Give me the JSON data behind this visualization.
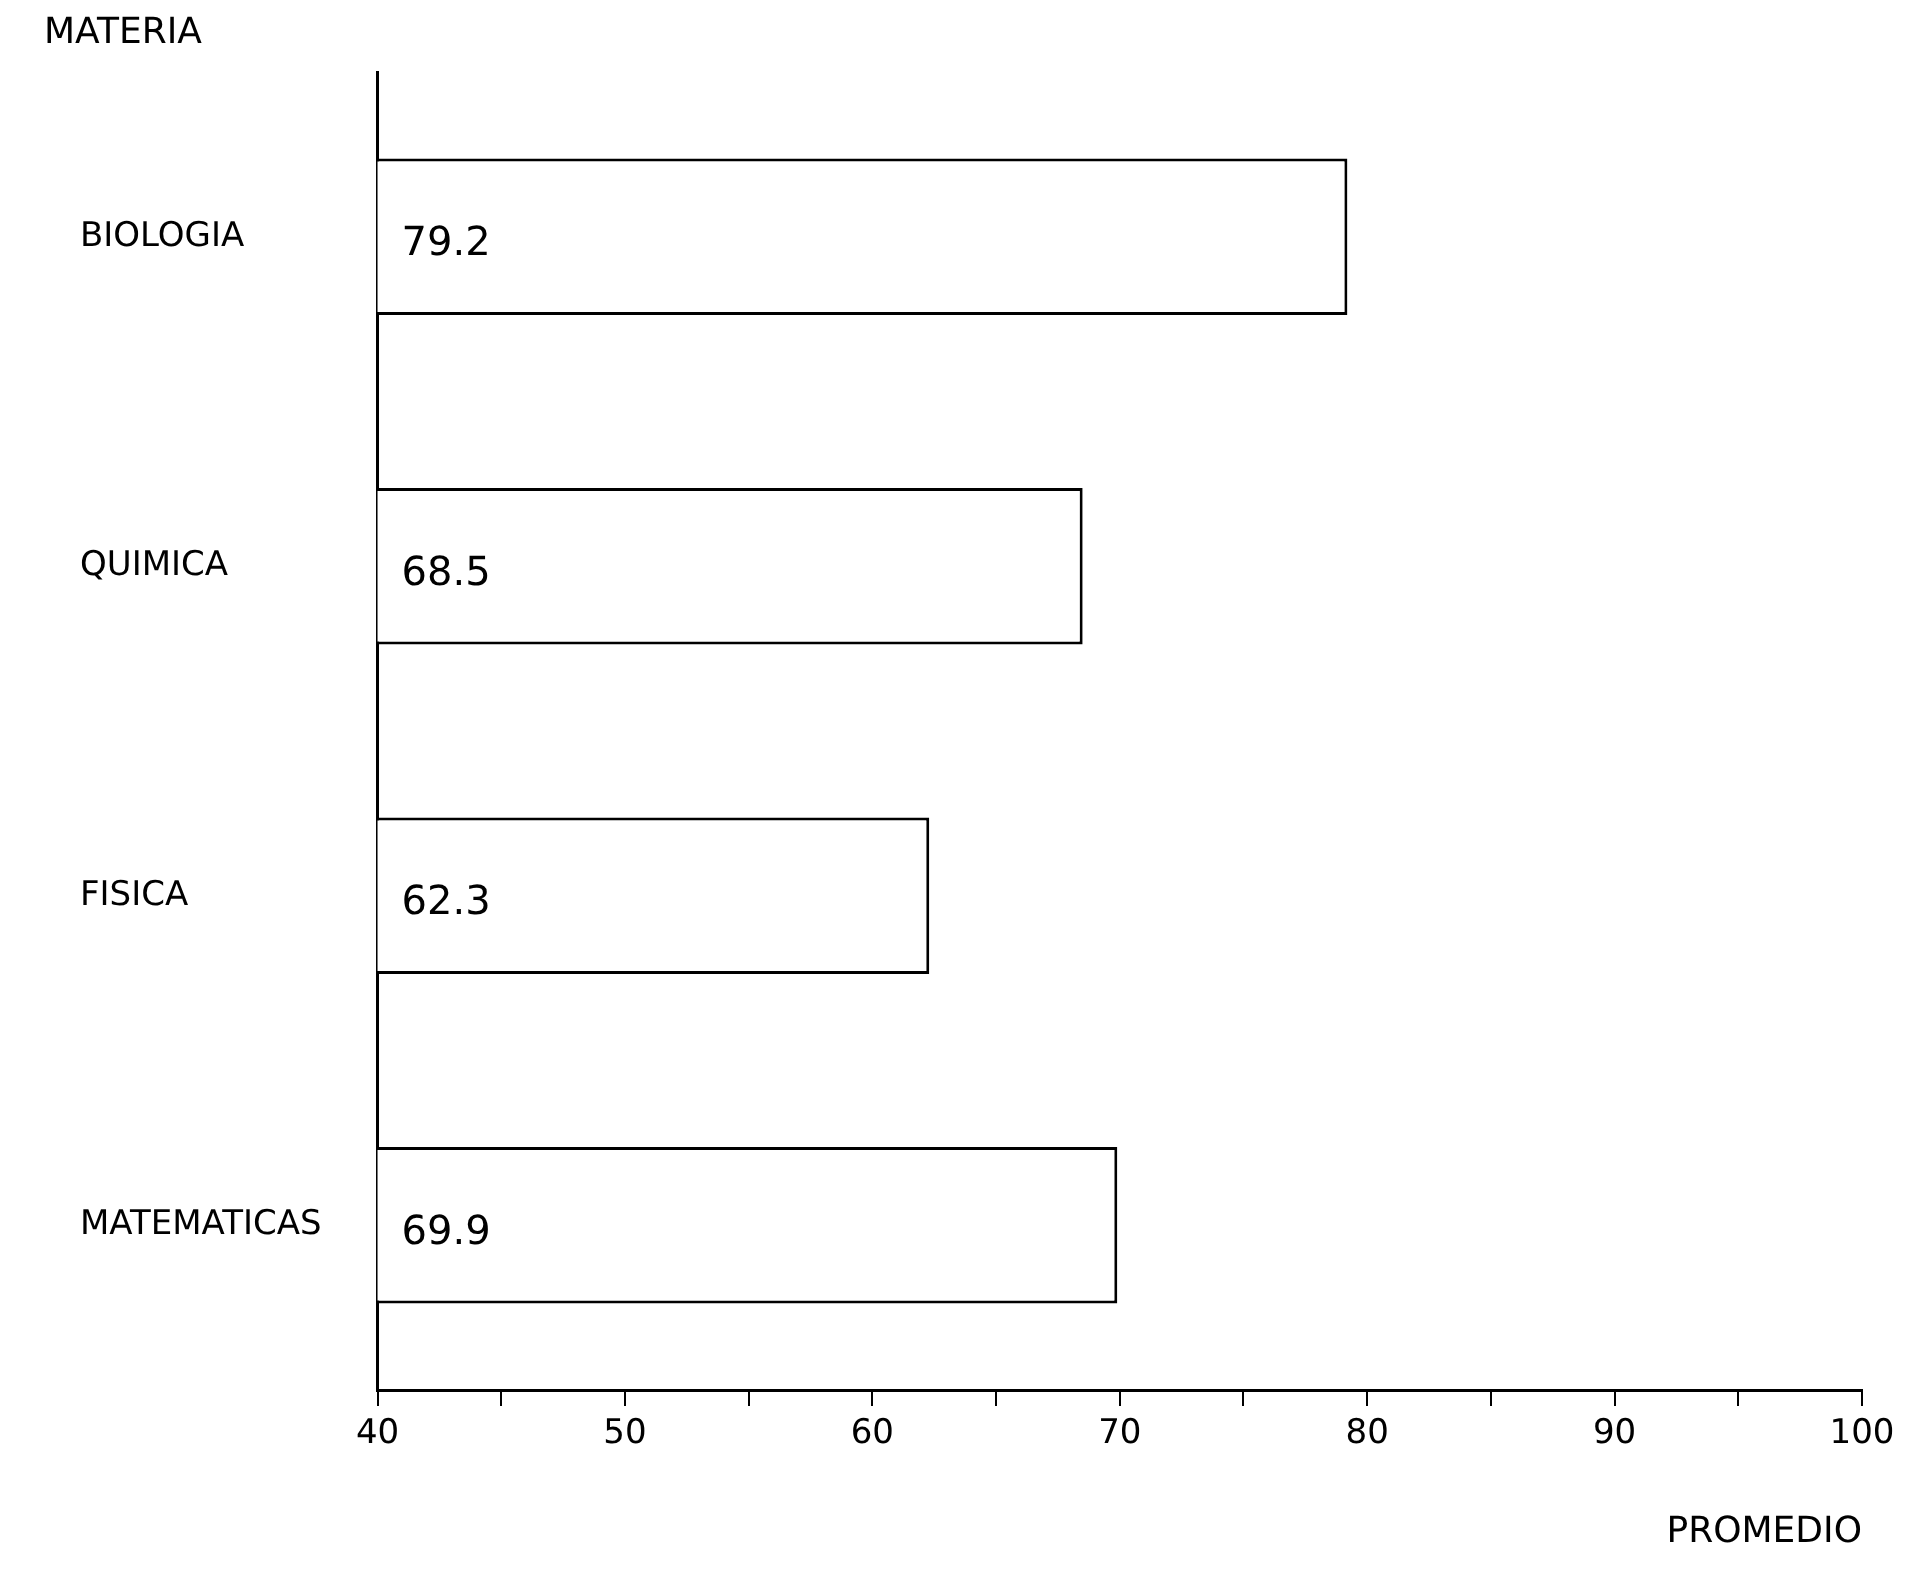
{
  "chart_data": {
    "type": "bar",
    "orientation": "horizontal",
    "categories": [
      "BIOLOGIA",
      "QUIMICA",
      "FISICA",
      "MATEMATICAS"
    ],
    "values": [
      79.2,
      68.5,
      62.3,
      69.9
    ],
    "color": "#ffffff",
    "xlim": [
      40,
      100
    ],
    "xticks": [
      40,
      {
        "value": 45,
        "label": null
      },
      50,
      {
        "value": 55,
        "label": null
      },
      60,
      {
        "value": 65,
        "label": null
      },
      70,
      {
        "value": 75,
        "label": null
      },
      80,
      {
        "value": 85,
        "label": null
      },
      90,
      {
        "value": 95,
        "label": null
      },
      100
    ],
    "xlabel": "PROMEDIO",
    "ylabel": "MATERIA",
    "data_labels": true,
    "grid": false,
    "legend": false
  }
}
